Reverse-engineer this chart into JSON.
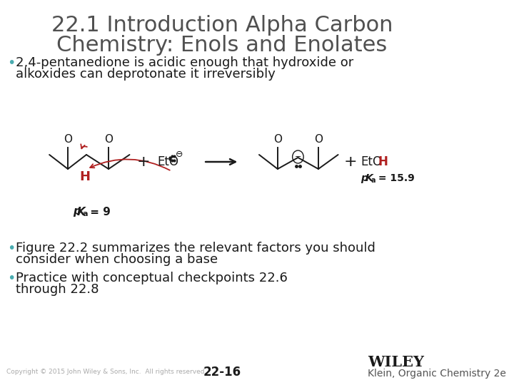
{
  "title_line1": "22.1 Introduction Alpha Carbon",
  "title_line2": "Chemistry: Enols and Enolates",
  "title_color": "#505050",
  "title_fontsize": 22,
  "bullet_color": "#404040",
  "bullet_fontsize": 13,
  "bullet_teal": "#4aacb0",
  "bullet1_line1": "2,4-pentanedione is acidic enough that hydroxide or",
  "bullet1_line2": "alkoxides can deprotonate it irreversibly",
  "bullet2_line1": "Figure 22.2 summarizes the relevant factors you should",
  "bullet2_line2": "consider when choosing a base",
  "bullet3_line1": "Practice with conceptual checkpoints 22.6",
  "bullet3_line2": "through 22.8",
  "footer_copyright": "Copyright © 2015 John Wiley & Sons, Inc.  All rights reserved.",
  "footer_page": "22-16",
  "footer_right": "Klein, Organic Chemistry 2e",
  "footer_wiley": "WILEY",
  "background_color": "#ffffff",
  "red_color": "#b02020",
  "black_color": "#1a1a1a",
  "gray_color": "#555555"
}
